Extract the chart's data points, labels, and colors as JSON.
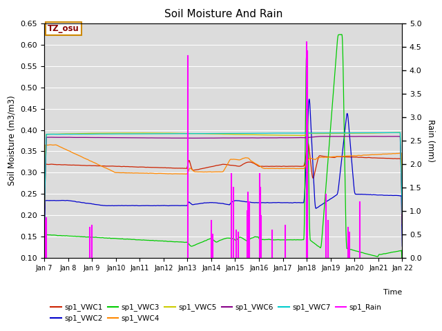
{
  "title": "Soil Moisture And Rain",
  "xlabel": "Time",
  "ylabel_left": "Soil Moisture (m3/m3)",
  "ylabel_right": "Rain (mm)",
  "ylim_left": [
    0.1,
    0.65
  ],
  "ylim_right": [
    0.0,
    5.0
  ],
  "yticks_left": [
    0.1,
    0.15,
    0.2,
    0.25,
    0.3,
    0.35,
    0.4,
    0.45,
    0.5,
    0.55,
    0.6,
    0.65
  ],
  "yticks_right": [
    0.0,
    0.5,
    1.0,
    1.5,
    2.0,
    2.5,
    3.0,
    3.5,
    4.0,
    4.5,
    5.0
  ],
  "annotation_text": "TZ_osu",
  "annotation_color": "#880000",
  "annotation_bg": "#ffffff",
  "annotation_edge": "#cc8800",
  "background_color": "#dcdcdc",
  "fig_background": "#ffffff",
  "grid_color": "#ffffff",
  "series_colors": {
    "sp1_VWC1": "#cc2200",
    "sp1_VWC2": "#0000cc",
    "sp1_VWC3": "#00cc00",
    "sp1_VWC4": "#ff8800",
    "sp1_VWC5": "#cccc00",
    "sp1_VWC6": "#880088",
    "sp1_VWC7": "#00cccc",
    "sp1_Rain": "#ff00ff"
  },
  "xtick_labels": [
    "Jan 7",
    "Jan 8",
    "Jan 9",
    "Jan10",
    "Jan11",
    "Jan12",
    "Jan13",
    "Jan14",
    "Jan15",
    "Jan16",
    "Jan17",
    "Jan18",
    "Jan19",
    "Jan20",
    "Jan21",
    "Jan 22"
  ],
  "xtick_positions": [
    7,
    8,
    9,
    10,
    11,
    12,
    13,
    14,
    15,
    16,
    17,
    18,
    19,
    20,
    21,
    22
  ],
  "n_points": 5000
}
